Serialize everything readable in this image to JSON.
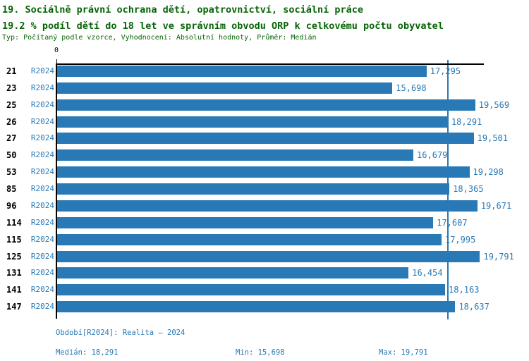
{
  "header": {
    "title_line1": "19. Sociálně právní ochrana dětí, opatrovnictví, sociální práce",
    "title_line2": "19.2 % podíl dětí do 18 let ve správním obvodu ORP k celkovému počtu obyvatel",
    "subtitle": "Typ: Počítaný podle vzorce, Vyhodnocení: Absolutní hodnoty, Průměr: Medián"
  },
  "chart_data": {
    "type": "bar",
    "orientation": "horizontal",
    "title": "19.2 % podíl dětí do 18 let ve správním obvodu ORP k celkovému počtu obyvatel",
    "categories": [
      "21",
      "23",
      "25",
      "26",
      "27",
      "50",
      "53",
      "85",
      "96",
      "114",
      "115",
      "125",
      "131",
      "141",
      "147"
    ],
    "series": [
      {
        "name": "R2024",
        "values": [
          17295,
          15698,
          19569,
          18291,
          19501,
          16679,
          19298,
          18365,
          19671,
          17607,
          17995,
          19791,
          16454,
          18163,
          18637
        ]
      }
    ],
    "series_label": "R2024",
    "x_zero_label": "0",
    "xlim": [
      0,
      19940
    ],
    "median_line_value": 18291,
    "grid": false,
    "legend_position": "none",
    "bar_color": "#2879b5",
    "axis_color": "#000000",
    "title_color": "#066406"
  },
  "footer": {
    "period": "Období[R2024]: Realita – 2024",
    "median": "Medián: 18,291",
    "min": "Min: 15,698",
    "max": "Max: 19,791"
  },
  "stats": {
    "median": 18291,
    "min": 15698,
    "max": 19791
  }
}
